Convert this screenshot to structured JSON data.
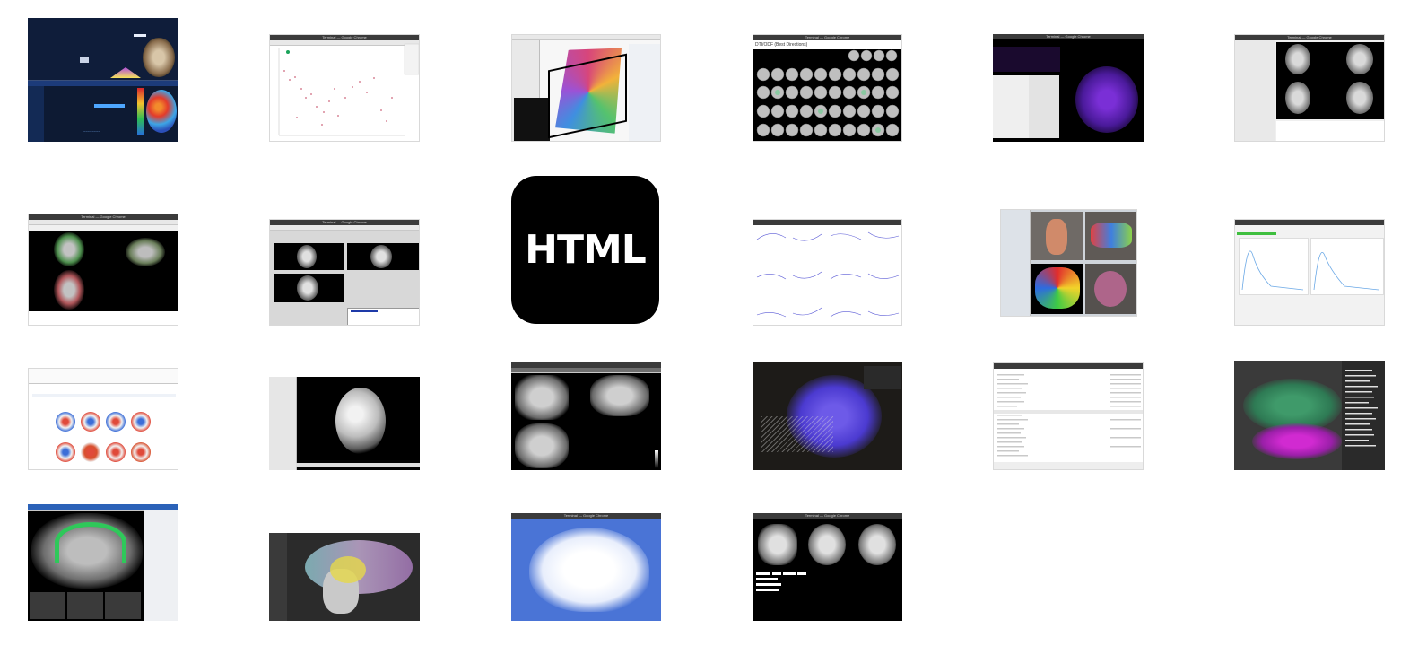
{
  "center_tile": {
    "label": "HTML"
  },
  "thumbnails": [
    {
      "title": ""
    },
    {
      "title": "Terminal — Google Chrome"
    },
    {
      "title": ""
    },
    {
      "title": "Terminal — Google Chrome",
      "header": "DTI/ODF (Best Directions)"
    },
    {
      "title": "Terminal — Google Chrome"
    },
    {
      "title": "Terminal — Google Chrome"
    },
    {
      "title": "Terminal — Google Chrome"
    },
    {
      "title": "Terminal — Google Chrome"
    },
    {
      "title": "Terminal — Google Chrome"
    },
    {
      "title": ""
    },
    {
      "title": "Terminal — Google Chrome"
    },
    {
      "title": ""
    },
    {
      "title": ""
    },
    {
      "title": "Terminal — Google Chrome"
    },
    {
      "title": ""
    },
    {
      "title": "Terminal — Google Chrome"
    },
    {
      "title": ""
    },
    {
      "title": ""
    },
    {
      "title": ""
    },
    {
      "title": "Terminal — Google Chrome"
    },
    {
      "title": "Terminal — Google Chrome"
    }
  ]
}
